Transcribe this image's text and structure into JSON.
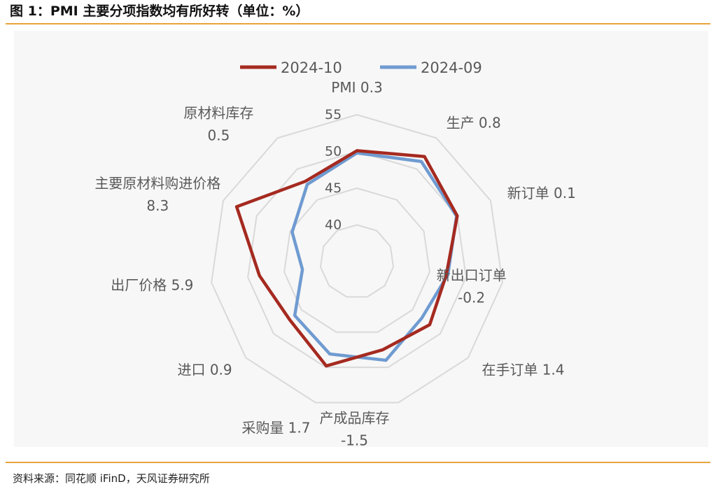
{
  "header": {
    "title": "图 1：PMI 主要分项指数均有所好转（单位：%）"
  },
  "footer": {
    "source": "资料来源：同花顺 iFinD，天风证券研究所"
  },
  "chart_data": {
    "type": "radar",
    "title": "",
    "categories": [
      "PMI",
      "生产",
      "新订单",
      "新出口订单",
      "在手订单",
      "产成品库存",
      "采购量",
      "进口",
      "出厂价格",
      "主要原材料购进价格",
      "原材料库存"
    ],
    "category_labels": [
      "PMI 0.3",
      "生产 0.8",
      "新订单 0.1",
      "新出口订单 -0.2",
      "在手订单 1.4",
      "产成品库存 -1.5",
      "采购量 1.7",
      "进口 0.9",
      "出厂价格 5.9",
      "主要原材料购进价格 8.3",
      "原材料库存 0.5"
    ],
    "radial_ticks": [
      "40",
      "45",
      "50",
      "55"
    ],
    "rlim": [
      35,
      55
    ],
    "legend_position": "top",
    "series": [
      {
        "name": "2024-10",
        "color": "#a52a20",
        "values": [
          50.1,
          52.0,
          50.0,
          47.3,
          48.1,
          47.5,
          49.8,
          47.1,
          48.4,
          53.0,
          48.0
        ]
      },
      {
        "name": "2024-09",
        "color": "#6f9bd1",
        "values": [
          49.8,
          51.2,
          49.9,
          47.5,
          46.7,
          49.0,
          48.1,
          46.2,
          42.5,
          44.7,
          47.5
        ]
      }
    ],
    "grid_color": "#d9d9d9"
  }
}
